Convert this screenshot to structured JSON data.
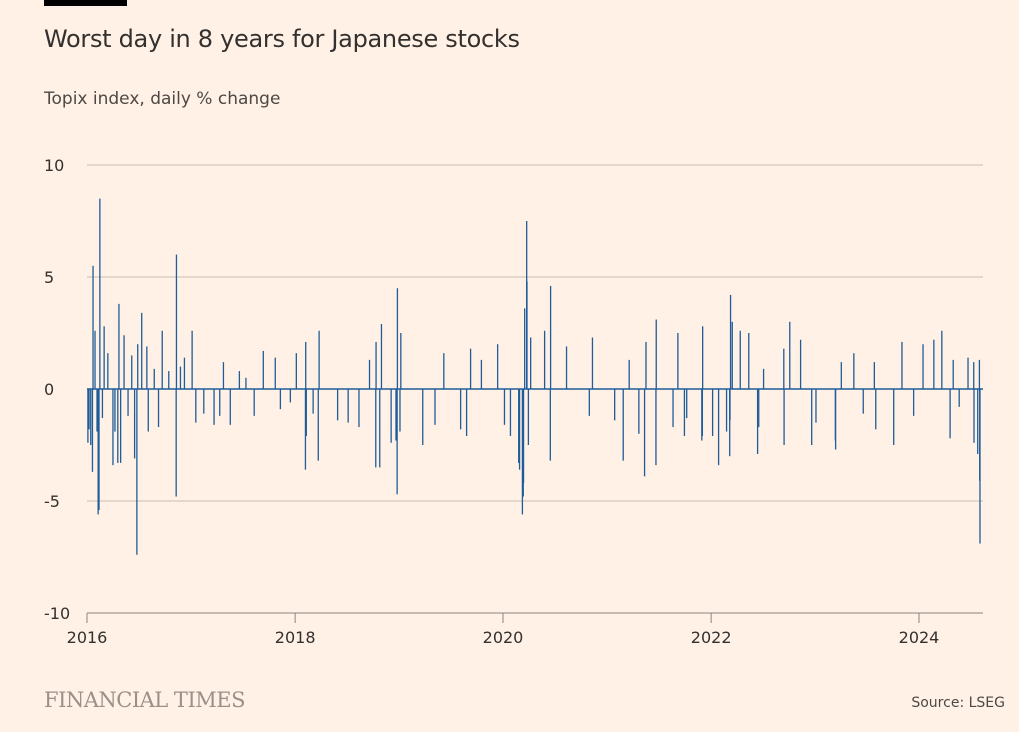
{
  "header": {
    "title": "Worst day in 8 years for Japanese stocks",
    "subtitle": "Topix index, daily % change"
  },
  "footer": {
    "logo": "FINANCIAL TIMES",
    "source": "Source: LSEG"
  },
  "colors": {
    "background": "#fff1e5",
    "bar": "#1f5c99",
    "grid": "#c9bdb3"
  },
  "chart_data": {
    "type": "bar",
    "title": "Worst day in 8 years for Japanese stocks",
    "subtitle": "Topix index, daily % change",
    "xlabel": "",
    "ylabel": "",
    "ylim": [
      -10,
      10
    ],
    "xlim": [
      "2016-01-04",
      "2024-08-02"
    ],
    "yticks": [
      "10",
      "5",
      "0",
      "-5",
      "-10"
    ],
    "xticks": [
      "2016",
      "2018",
      "2020",
      "2022",
      "2024"
    ],
    "grid": true,
    "points": [
      [
        "2016-01-04",
        -2.4
      ],
      [
        "2016-01-08",
        -1.8
      ],
      [
        "2016-01-14",
        -2.5
      ],
      [
        "2016-01-20",
        -3.7
      ],
      [
        "2016-01-22",
        5.5
      ],
      [
        "2016-01-29",
        2.6
      ],
      [
        "2016-02-05",
        -1.9
      ],
      [
        "2016-02-09",
        -5.6
      ],
      [
        "2016-02-12",
        -5.4
      ],
      [
        "2016-02-15",
        8.5
      ],
      [
        "2016-02-24",
        -1.3
      ],
      [
        "2016-03-01",
        2.8
      ],
      [
        "2016-03-14",
        1.6
      ],
      [
        "2016-04-01",
        -3.4
      ],
      [
        "2016-04-08",
        -1.9
      ],
      [
        "2016-04-18",
        -3.3
      ],
      [
        "2016-04-22",
        3.8
      ],
      [
        "2016-04-28",
        -3.3
      ],
      [
        "2016-05-10",
        2.4
      ],
      [
        "2016-05-24",
        -1.2
      ],
      [
        "2016-06-06",
        1.5
      ],
      [
        "2016-06-16",
        -3.1
      ],
      [
        "2016-06-24",
        -7.4
      ],
      [
        "2016-06-27",
        2.0
      ],
      [
        "2016-07-11",
        3.4
      ],
      [
        "2016-07-29",
        1.9
      ],
      [
        "2016-08-03",
        -1.9
      ],
      [
        "2016-08-24",
        0.9
      ],
      [
        "2016-09-08",
        -1.7
      ],
      [
        "2016-09-21",
        2.6
      ],
      [
        "2016-10-14",
        0.8
      ],
      [
        "2016-11-09",
        -4.8
      ],
      [
        "2016-11-10",
        6.0
      ],
      [
        "2016-11-24",
        1.0
      ],
      [
        "2016-12-08",
        1.4
      ],
      [
        "2017-01-04",
        2.6
      ],
      [
        "2017-01-17",
        -1.5
      ],
      [
        "2017-02-14",
        -1.1
      ],
      [
        "2017-03-22",
        -1.6
      ],
      [
        "2017-04-11",
        -1.2
      ],
      [
        "2017-04-24",
        1.2
      ],
      [
        "2017-05-18",
        -1.6
      ],
      [
        "2017-06-19",
        0.8
      ],
      [
        "2017-07-12",
        0.5
      ],
      [
        "2017-08-10",
        -1.2
      ],
      [
        "2017-09-11",
        1.7
      ],
      [
        "2017-10-23",
        1.4
      ],
      [
        "2017-11-10",
        -0.9
      ],
      [
        "2017-12-15",
        -0.6
      ],
      [
        "2018-01-05",
        1.6
      ],
      [
        "2018-02-06",
        -3.6
      ],
      [
        "2018-02-07",
        2.1
      ],
      [
        "2018-02-09",
        -2.1
      ],
      [
        "2018-03-05",
        -1.1
      ],
      [
        "2018-03-23",
        -3.2
      ],
      [
        "2018-03-26",
        2.6
      ],
      [
        "2018-05-30",
        -1.4
      ],
      [
        "2018-07-06",
        -1.5
      ],
      [
        "2018-08-13",
        -1.7
      ],
      [
        "2018-09-19",
        1.3
      ],
      [
        "2018-10-11",
        -3.5
      ],
      [
        "2018-10-12",
        2.1
      ],
      [
        "2018-10-25",
        -3.5
      ],
      [
        "2018-10-31",
        2.9
      ],
      [
        "2018-12-04",
        -2.4
      ],
      [
        "2018-12-21",
        -2.3
      ],
      [
        "2018-12-25",
        -4.7
      ],
      [
        "2018-12-26",
        4.5
      ],
      [
        "2019-01-04",
        -1.9
      ],
      [
        "2019-01-07",
        2.5
      ],
      [
        "2019-03-25",
        -2.5
      ],
      [
        "2019-05-07",
        -1.6
      ],
      [
        "2019-06-07",
        1.6
      ],
      [
        "2019-08-05",
        -1.8
      ],
      [
        "2019-08-26",
        -2.1
      ],
      [
        "2019-09-09",
        1.8
      ],
      [
        "2019-10-17",
        1.3
      ],
      [
        "2019-12-13",
        2.0
      ],
      [
        "2020-01-06",
        -1.6
      ],
      [
        "2020-01-27",
        -2.1
      ],
      [
        "2020-02-25",
        -3.3
      ],
      [
        "2020-02-28",
        -3.6
      ],
      [
        "2020-03-09",
        -5.6
      ],
      [
        "2020-03-12",
        -4.8
      ],
      [
        "2020-03-13",
        -4.2
      ],
      [
        "2020-03-17",
        3.6
      ],
      [
        "2020-03-24",
        7.5
      ],
      [
        "2020-03-25",
        4.8
      ],
      [
        "2020-03-30",
        -2.5
      ],
      [
        "2020-04-07",
        2.3
      ],
      [
        "2020-05-26",
        2.6
      ],
      [
        "2020-06-15",
        -3.2
      ],
      [
        "2020-06-16",
        4.6
      ],
      [
        "2020-08-11",
        1.9
      ],
      [
        "2020-10-30",
        -1.2
      ],
      [
        "2020-11-10",
        2.3
      ],
      [
        "2021-01-27",
        -1.4
      ],
      [
        "2021-02-26",
        -3.2
      ],
      [
        "2021-03-19",
        1.3
      ],
      [
        "2021-04-22",
        -2.0
      ],
      [
        "2021-05-12",
        -3.9
      ],
      [
        "2021-05-17",
        2.1
      ],
      [
        "2021-06-21",
        -3.4
      ],
      [
        "2021-06-22",
        3.1
      ],
      [
        "2021-08-20",
        -1.7
      ],
      [
        "2021-09-06",
        2.5
      ],
      [
        "2021-09-29",
        -2.1
      ],
      [
        "2021-10-07",
        -1.3
      ],
      [
        "2021-11-29",
        -2.3
      ],
      [
        "2021-12-01",
        -2.1
      ],
      [
        "2021-12-02",
        2.8
      ],
      [
        "2022-01-06",
        -2.1
      ],
      [
        "2022-01-27",
        -3.4
      ],
      [
        "2022-02-24",
        -1.9
      ],
      [
        "2022-03-07",
        -3.0
      ],
      [
        "2022-03-08",
        -1.4
      ],
      [
        "2022-03-10",
        4.2
      ],
      [
        "2022-03-16",
        3.0
      ],
      [
        "2022-04-13",
        2.6
      ],
      [
        "2022-05-13",
        2.5
      ],
      [
        "2022-06-13",
        -2.9
      ],
      [
        "2022-06-17",
        -1.7
      ],
      [
        "2022-07-04",
        0.9
      ],
      [
        "2022-09-13",
        1.8
      ],
      [
        "2022-09-14",
        -2.5
      ],
      [
        "2022-10-04",
        3.0
      ],
      [
        "2022-11-11",
        2.2
      ],
      [
        "2022-12-20",
        -2.5
      ],
      [
        "2023-01-04",
        -1.5
      ],
      [
        "2023-03-13",
        -2.3
      ],
      [
        "2023-03-14",
        -2.7
      ],
      [
        "2023-04-03",
        1.2
      ],
      [
        "2023-05-17",
        1.6
      ],
      [
        "2023-06-19",
        -1.1
      ],
      [
        "2023-07-28",
        1.2
      ],
      [
        "2023-08-02",
        -1.8
      ],
      [
        "2023-10-04",
        -2.5
      ],
      [
        "2023-11-02",
        2.1
      ],
      [
        "2023-12-13",
        -1.2
      ],
      [
        "2024-01-15",
        2.0
      ],
      [
        "2024-02-22",
        2.2
      ],
      [
        "2024-03-21",
        2.6
      ],
      [
        "2024-04-19",
        -2.2
      ],
      [
        "2024-04-30",
        1.3
      ],
      [
        "2024-05-21",
        -0.8
      ],
      [
        "2024-06-21",
        1.4
      ],
      [
        "2024-07-11",
        1.2
      ],
      [
        "2024-07-12",
        -2.4
      ],
      [
        "2024-07-25",
        -2.9
      ],
      [
        "2024-07-31",
        1.3
      ],
      [
        "2024-08-01",
        -4.1
      ],
      [
        "2024-08-02",
        -6.9
      ]
    ]
  }
}
